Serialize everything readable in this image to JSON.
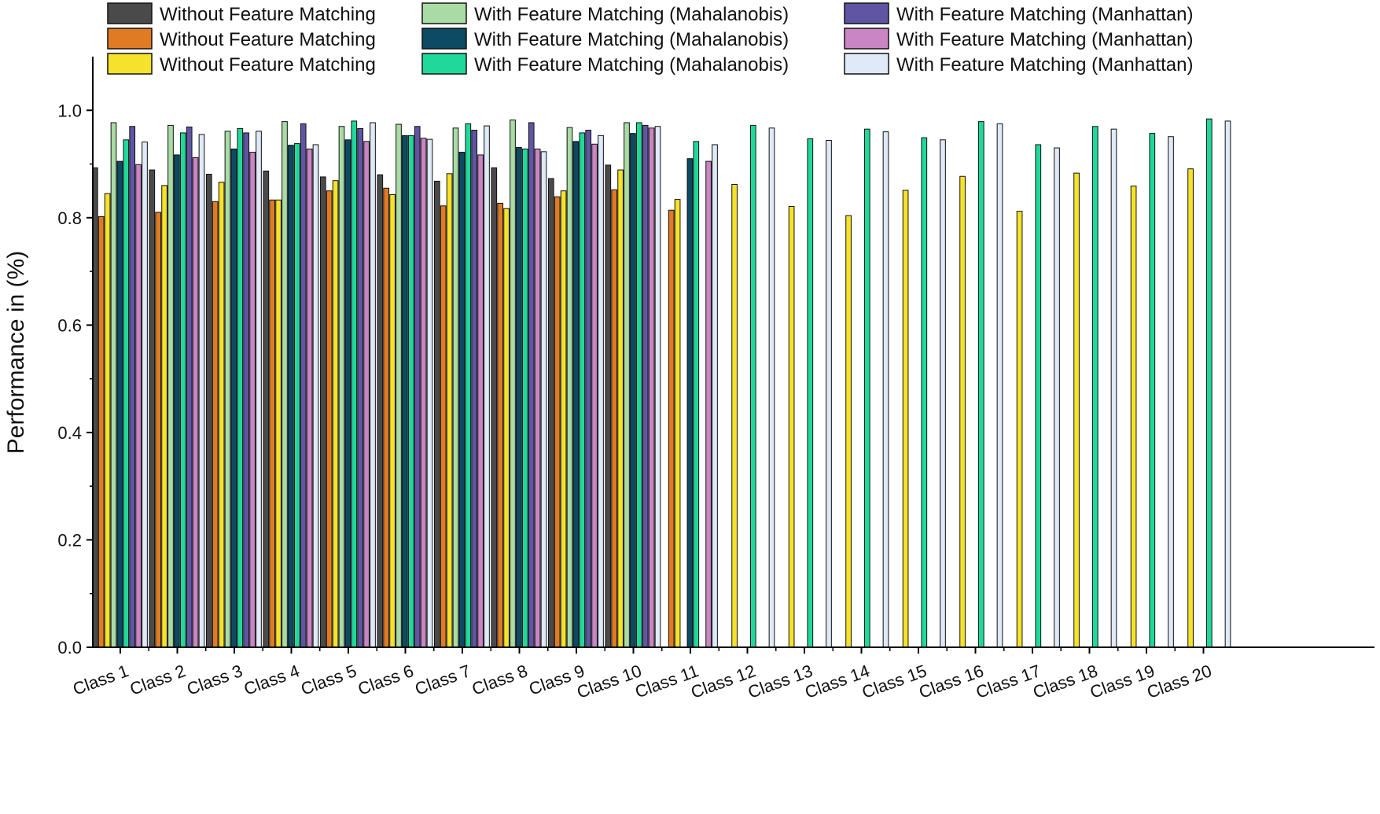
{
  "chart_data": {
    "type": "bar",
    "title": "",
    "xlabel": "",
    "ylabel": "Performance in (%)",
    "ylim": [
      0.0,
      1.1
    ],
    "yticks": [
      "0.0",
      "0.2",
      "0.4",
      "0.6",
      "0.8",
      "1.0"
    ],
    "grid": false,
    "legend_position": "top",
    "categories": [
      "Class 1",
      "Class 2",
      "Class 3",
      "Class 4",
      "Class 5",
      "Class 6",
      "Class 7",
      "Class 8",
      "Class 9",
      "Class 10",
      "Class 11",
      "Class 12",
      "Class 13",
      "Class 14",
      "Class 15",
      "Class 16",
      "Class 17",
      "Class 18",
      "Class 19",
      "Class 20"
    ],
    "series": [
      {
        "name": "Without Feature Matching",
        "color": "#4a4a4a",
        "values": [
          0.893,
          0.889,
          0.881,
          0.887,
          0.876,
          0.88,
          0.868,
          0.893,
          0.873,
          0.898,
          null,
          null,
          null,
          null,
          null,
          null,
          null,
          null,
          null,
          null
        ]
      },
      {
        "name": "Without Feature Matching",
        "color": "#e07b24",
        "values": [
          0.802,
          0.81,
          0.83,
          0.833,
          0.85,
          0.855,
          0.822,
          0.827,
          0.839,
          0.852,
          0.814,
          null,
          null,
          null,
          null,
          null,
          null,
          null,
          null,
          null
        ]
      },
      {
        "name": "Without Feature Matching",
        "color": "#f5e22a",
        "values": [
          0.845,
          0.86,
          0.866,
          0.833,
          0.869,
          0.843,
          0.882,
          0.817,
          0.85,
          0.889,
          0.834,
          0.862,
          0.821,
          0.804,
          0.851,
          0.877,
          0.812,
          0.883,
          0.859,
          0.891
        ]
      },
      {
        "name": "With Feature Matching (Mahalanobis)",
        "color": "#a9dca5",
        "values": [
          0.977,
          0.972,
          0.961,
          0.979,
          0.97,
          0.974,
          0.967,
          0.982,
          0.968,
          0.977,
          null,
          null,
          null,
          null,
          null,
          null,
          null,
          null,
          null,
          null
        ]
      },
      {
        "name": "With Feature Matching (Mahalanobis)",
        "color": "#0d4a63",
        "values": [
          0.905,
          0.917,
          0.928,
          0.935,
          0.945,
          0.953,
          0.922,
          0.931,
          0.942,
          0.957,
          0.91,
          null,
          null,
          null,
          null,
          null,
          null,
          null,
          null,
          null
        ]
      },
      {
        "name": "With Feature Matching (Mahalanobis)",
        "color": "#1fd99a",
        "values": [
          0.945,
          0.958,
          0.966,
          0.938,
          0.98,
          0.953,
          0.975,
          0.928,
          0.958,
          0.977,
          0.942,
          0.972,
          0.947,
          0.965,
          0.949,
          0.979,
          0.936,
          0.97,
          0.957,
          0.984
        ]
      },
      {
        "name": "With Feature Matching (Manhattan)",
        "color": "#5f55a3",
        "values": [
          0.97,
          0.969,
          0.958,
          0.975,
          0.966,
          0.97,
          0.963,
          0.977,
          0.963,
          0.972,
          null,
          null,
          null,
          null,
          null,
          null,
          null,
          null,
          null,
          null
        ]
      },
      {
        "name": "With Feature Matching (Manhattan)",
        "color": "#c985c4",
        "values": [
          0.899,
          0.912,
          0.922,
          0.928,
          0.942,
          0.948,
          0.917,
          0.928,
          0.937,
          0.967,
          0.905,
          null,
          null,
          null,
          null,
          null,
          null,
          null,
          null,
          null
        ]
      },
      {
        "name": "With Feature Matching (Manhattan)",
        "color": "#dfe9f7",
        "values": [
          0.941,
          0.955,
          0.961,
          0.936,
          0.977,
          0.946,
          0.971,
          0.923,
          0.953,
          0.97,
          0.936,
          0.967,
          0.944,
          0.96,
          0.945,
          0.975,
          0.93,
          0.965,
          0.951,
          0.98
        ]
      }
    ]
  }
}
